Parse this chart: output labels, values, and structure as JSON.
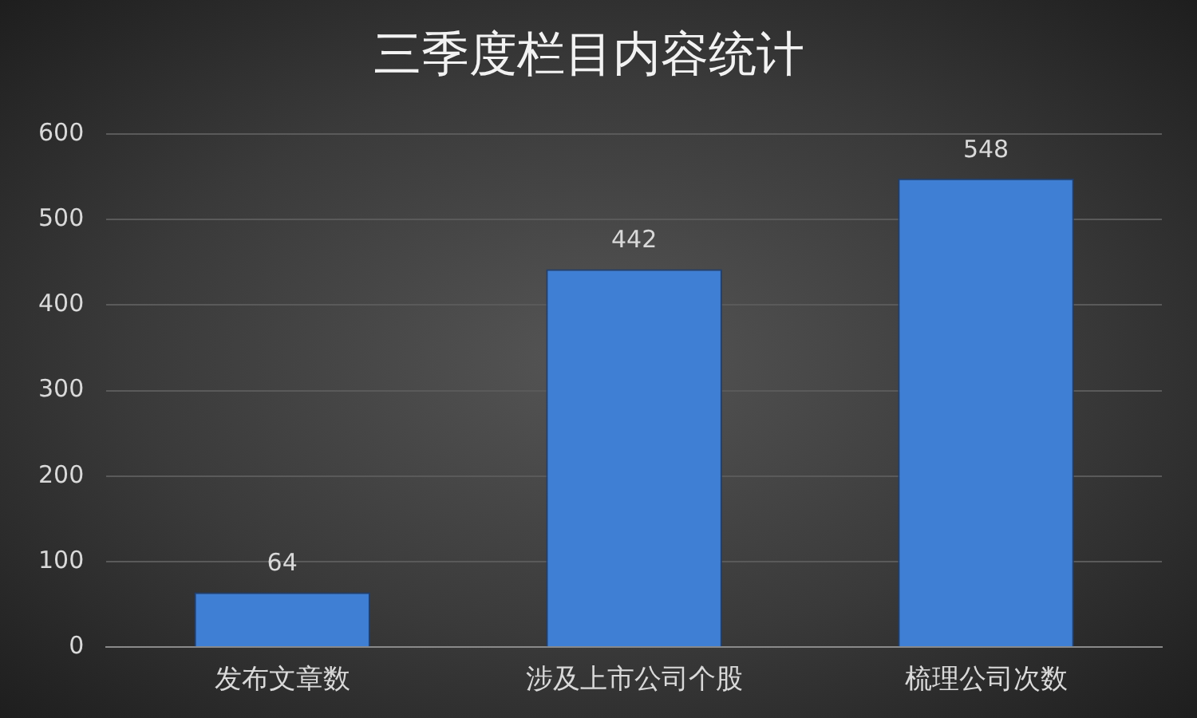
{
  "chart_data": {
    "type": "bar",
    "title": "三季度栏目内容统计",
    "categories": [
      "发布文章数",
      "涉及上市公司个股",
      "梳理公司次数"
    ],
    "values": [
      64,
      442,
      548
    ],
    "color": "#3f7fd4",
    "ylim": [
      0,
      600
    ],
    "yticks": [
      0,
      100,
      200,
      300,
      400,
      500,
      600
    ],
    "grid": "y",
    "data_labels": true
  }
}
